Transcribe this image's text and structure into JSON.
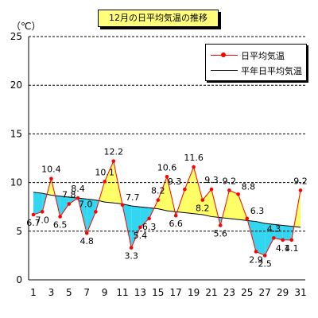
{
  "chart_data": {
    "type": "line",
    "title": "12月の日平均気温の推移",
    "ylabel": "（℃）",
    "xlabel": "",
    "ylim": [
      0,
      25
    ],
    "yticks": [
      0,
      5,
      10,
      15,
      20,
      25
    ],
    "xticks": [
      1,
      3,
      5,
      7,
      9,
      11,
      13,
      15,
      17,
      19,
      21,
      23,
      25,
      27,
      29,
      31
    ],
    "grid": true,
    "legend_position": "top-right",
    "days": [
      1,
      2,
      3,
      4,
      5,
      6,
      7,
      8,
      9,
      10,
      11,
      12,
      13,
      14,
      15,
      16,
      17,
      18,
      19,
      20,
      21,
      22,
      23,
      24,
      25,
      26,
      27,
      28,
      29,
      30,
      31
    ],
    "series": [
      {
        "name": "日平均気温",
        "values": [
          6.7,
          7.0,
          10.4,
          6.5,
          7.8,
          8.4,
          4.8,
          7.0,
          10.1,
          12.2,
          7.7,
          3.3,
          5.4,
          6.3,
          8.2,
          10.6,
          6.6,
          9.3,
          11.6,
          8.2,
          9.3,
          5.6,
          9.2,
          8.8,
          6.3,
          2.9,
          2.5,
          4.3,
          4.1,
          4.1,
          9.2
        ]
      },
      {
        "name": "平年日平均気温",
        "values": [
          9.0,
          8.9,
          8.7,
          8.6,
          8.5,
          8.4,
          8.3,
          8.2,
          8.0,
          7.9,
          7.8,
          7.6,
          7.5,
          7.4,
          7.3,
          7.1,
          7.0,
          6.9,
          6.8,
          6.7,
          6.5,
          6.4,
          6.3,
          6.2,
          6.1,
          6.0,
          5.8,
          5.7,
          5.6,
          5.5,
          5.4
        ]
      }
    ],
    "data_labels": [
      {
        "day": 1,
        "text": "6.7",
        "pos": "below"
      },
      {
        "day": 2,
        "text": "7.0",
        "pos": "below"
      },
      {
        "day": 3,
        "text": "10.4",
        "pos": "above"
      },
      {
        "day": 4,
        "text": "6.5",
        "pos": "below"
      },
      {
        "day": 5,
        "text": "7.8",
        "pos": "above"
      },
      {
        "day": 6,
        "text": "8.4",
        "pos": "above"
      },
      {
        "day": 7,
        "text": "4.8",
        "pos": "below"
      },
      {
        "day": 8,
        "text": "7.0",
        "pos": "left"
      },
      {
        "day": 9,
        "text": "10.1",
        "pos": "above"
      },
      {
        "day": 10,
        "text": "12.2",
        "pos": "above"
      },
      {
        "day": 11,
        "text": "7.7",
        "pos": "right"
      },
      {
        "day": 12,
        "text": "3.3",
        "pos": "below"
      },
      {
        "day": 13,
        "text": "5.4",
        "pos": "below"
      },
      {
        "day": 14,
        "text": "6.3",
        "pos": "below"
      },
      {
        "day": 15,
        "text": "8.2",
        "pos": "above"
      },
      {
        "day": 16,
        "text": "10.6",
        "pos": "above"
      },
      {
        "day": 17,
        "text": "6.6",
        "pos": "below"
      },
      {
        "day": 18,
        "text": "9.3",
        "pos": "left"
      },
      {
        "day": 19,
        "text": "11.6",
        "pos": "above"
      },
      {
        "day": 20,
        "text": "8.2",
        "pos": "below"
      },
      {
        "day": 21,
        "text": "9.3",
        "pos": "above"
      },
      {
        "day": 22,
        "text": "5.6",
        "pos": "below"
      },
      {
        "day": 23,
        "text": "9.2",
        "pos": "above"
      },
      {
        "day": 24,
        "text": "8.8",
        "pos": "right"
      },
      {
        "day": 25,
        "text": "6.3",
        "pos": "right"
      },
      {
        "day": 26,
        "text": "2.9",
        "pos": "below"
      },
      {
        "day": 27,
        "text": "2.5",
        "pos": "below"
      },
      {
        "day": 28,
        "text": "4.3",
        "pos": "above"
      },
      {
        "day": 29,
        "text": "4.1",
        "pos": "below"
      },
      {
        "day": 30,
        "text": "4.1",
        "pos": "below"
      },
      {
        "day": 31,
        "text": "9.2",
        "pos": "above"
      }
    ],
    "colors": {
      "actual_line": "#ff0000",
      "normal_line": "#000000",
      "fill_above": "#ffff66",
      "fill_below": "#33d6f0",
      "grid": "#000000",
      "axis": "#000000"
    }
  }
}
